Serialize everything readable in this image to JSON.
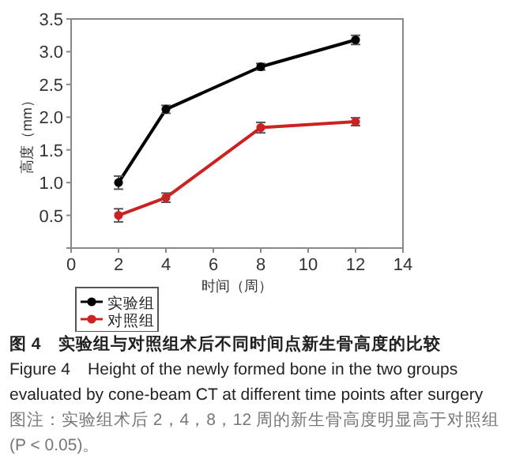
{
  "chart_data": {
    "type": "line",
    "title": "图 4　实验组与对照组术后不同时间点新生骨高度的比较",
    "subtitle": "Figure 4　Height of the newly formed bone in the two groups evaluated by cone-beam CT at different time points after surgery",
    "annotations": [
      "图注：实验组术后 2，4，8，12 周的新生骨高度明显高于对照组 (P < 0.05)。"
    ],
    "xlabel": "时间（周）",
    "ylabel": "高度（mm）",
    "x": [
      2,
      4,
      8,
      12
    ],
    "series": [
      {
        "name": "实验组",
        "color": "#000000",
        "values": [
          1.0,
          2.12,
          2.77,
          3.18
        ],
        "errors": [
          0.1,
          0.06,
          0.05,
          0.07
        ]
      },
      {
        "name": "对照组",
        "color": "#cc2222",
        "values": [
          0.5,
          0.77,
          1.84,
          1.93
        ],
        "errors": [
          0.1,
          0.07,
          0.08,
          0.06
        ]
      }
    ],
    "xlim": [
      0,
      14
    ],
    "xticks": [
      0,
      2,
      4,
      6,
      8,
      10,
      12,
      14
    ],
    "ylim": [
      0,
      3.5
    ],
    "yticks": [
      {
        "value": 0,
        "label": null
      },
      0.5,
      {
        "value": 1,
        "label": "1.0"
      },
      1.5,
      {
        "value": 2,
        "label": "2.0"
      },
      2.5,
      {
        "value": 3,
        "label": "3.0"
      },
      3.5
    ],
    "marker": "circle",
    "legend": "bottom left",
    "grid": false
  }
}
